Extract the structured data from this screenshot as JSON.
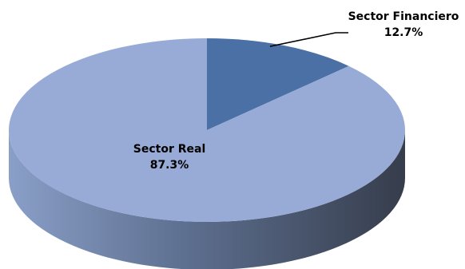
{
  "chart_data": {
    "type": "pie",
    "style": "3d",
    "title": "",
    "legend": "none",
    "slices": [
      {
        "name": "Sector Financiero",
        "value": 12.7,
        "label": "12.7%",
        "color": "#4a70a6"
      },
      {
        "name": "Sector Real",
        "value": 87.3,
        "label": "87.3%",
        "color": "#98abd6"
      }
    ],
    "side_color_light": "#8a9fc8",
    "side_color_dark": "#363d4c"
  }
}
